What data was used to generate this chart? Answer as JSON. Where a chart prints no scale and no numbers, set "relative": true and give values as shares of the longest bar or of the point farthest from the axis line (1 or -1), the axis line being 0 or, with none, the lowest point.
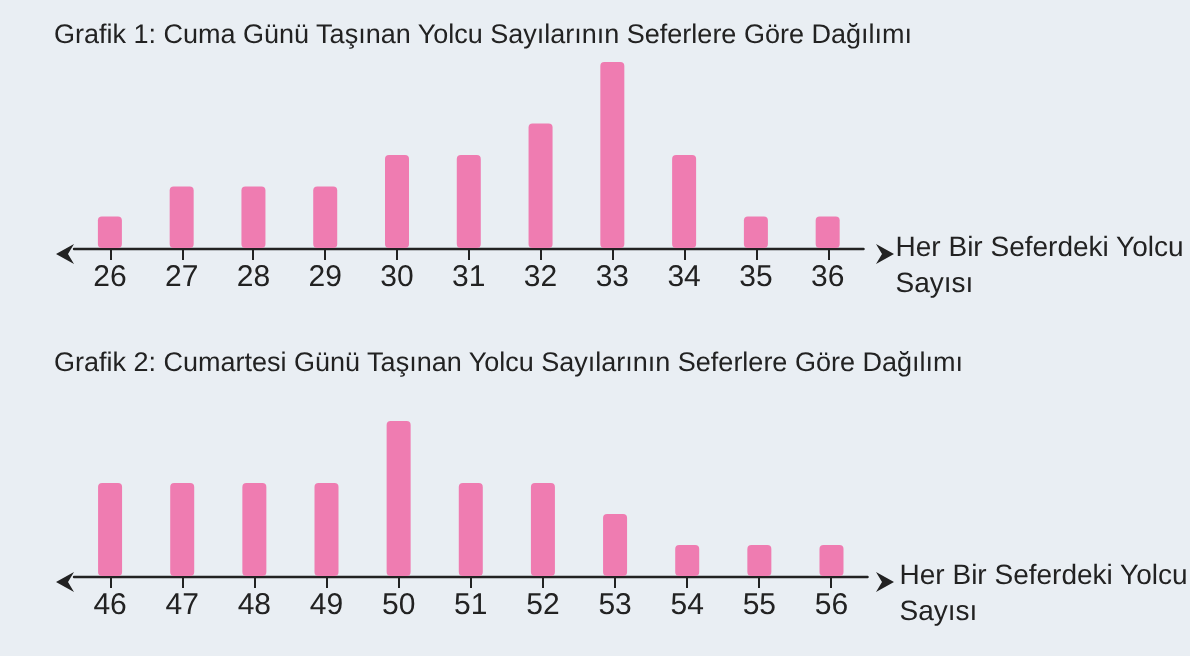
{
  "chart_data": [
    {
      "type": "bar",
      "relative": true,
      "title": "Grafik 1: Cuma Günü Taşınan Yolcu Sayılarının Seferlere Göre Dağılımı",
      "xlabel": "Her Bir Seferdeki Yolcu Sayısı",
      "categories": [
        "26",
        "27",
        "28",
        "29",
        "30",
        "31",
        "32",
        "33",
        "34",
        "35",
        "36"
      ],
      "color": "#ef7cb1",
      "grid": false,
      "values": [
        0.17,
        0.33,
        0.33,
        0.33,
        0.5,
        0.5,
        0.67,
        1,
        0.5,
        0.17,
        0.17
      ]
    },
    {
      "type": "bar",
      "relative": true,
      "title": "Grafik 2: Cumartesi Günü Taşınan Yolcu Sayılarının Seferlere Göre Dağılımı",
      "xlabel": "Her Bir Seferdeki Yolcu Sayısı",
      "categories": [
        "46",
        "47",
        "48",
        "49",
        "50",
        "51",
        "52",
        "53",
        "54",
        "55",
        "56"
      ],
      "color": "#ef7cb1",
      "grid": false,
      "values": [
        0.6,
        0.6,
        0.6,
        0.6,
        1,
        0.6,
        0.6,
        0.4,
        0.2,
        0.2,
        0.2
      ]
    }
  ]
}
